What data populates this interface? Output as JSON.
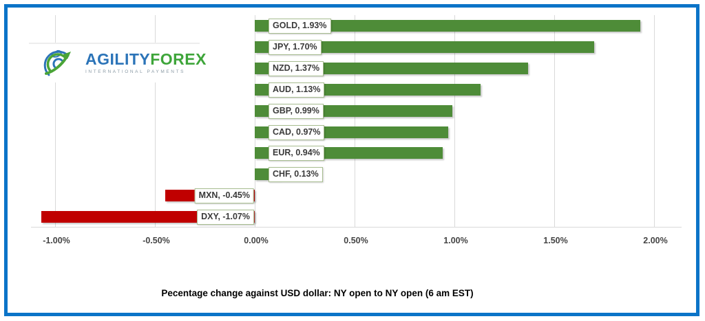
{
  "logo": {
    "text_primary": "AGILITY",
    "text_secondary": "FOREX",
    "tagline": "INTERNATIONAL PAYMENTS"
  },
  "caption": "Pecentage change against USD dollar: NY open to NY open  (6 am EST)",
  "colors": {
    "positive_bar": "#4e8c38",
    "negative_bar": "#c00000",
    "gridline": "#d9d9d9",
    "label_box_border": "#a7bd90",
    "frame_border": "#0b74c8",
    "tick_text": "#444444"
  },
  "chart_data": {
    "type": "bar",
    "orientation": "horizontal",
    "title": "Pecentage change against USD dollar: NY open to NY open  (6 am EST)",
    "xlabel": "",
    "ylabel": "",
    "xlim": [
      -1.0,
      2.0
    ],
    "grid": "vertical",
    "legend": "none",
    "categories": [
      "GOLD",
      "JPY",
      "NZD",
      "AUD",
      "GBP",
      "CAD",
      "EUR",
      "CHF",
      "MXN",
      "DXY"
    ],
    "values": [
      1.93,
      1.7,
      1.37,
      1.13,
      0.99,
      0.97,
      0.94,
      0.13,
      -0.45,
      -1.07
    ],
    "items": [
      {
        "code": "GOLD",
        "value": 1.93,
        "label": "GOLD, 1.93%"
      },
      {
        "code": "JPY",
        "value": 1.7,
        "label": "JPY, 1.70%"
      },
      {
        "code": "NZD",
        "value": 1.37,
        "label": "NZD, 1.37%"
      },
      {
        "code": "AUD",
        "value": 1.13,
        "label": "AUD, 1.13%"
      },
      {
        "code": "GBP",
        "value": 0.99,
        "label": "GBP, 0.99%"
      },
      {
        "code": "CAD",
        "value": 0.97,
        "label": "CAD, 0.97%"
      },
      {
        "code": "EUR",
        "value": 0.94,
        "label": "EUR, 0.94%"
      },
      {
        "code": "CHF",
        "value": 0.13,
        "label": "CHF, 0.13%"
      },
      {
        "code": "MXN",
        "value": -0.45,
        "label": "MXN, -0.45%"
      },
      {
        "code": "DXY",
        "value": -1.07,
        "label": "DXY, -1.07%"
      }
    ],
    "x_ticks": [
      {
        "label": "-1.00%",
        "value": -1.0
      },
      {
        "label": "-0.50%",
        "value": -0.5
      },
      {
        "label": "0.00%",
        "value": 0.0
      },
      {
        "label": "0.50%",
        "value": 0.5
      },
      {
        "label": "1.00%",
        "value": 1.0
      },
      {
        "label": "1.50%",
        "value": 1.5
      },
      {
        "label": "2.00%",
        "value": 2.0
      }
    ]
  }
}
